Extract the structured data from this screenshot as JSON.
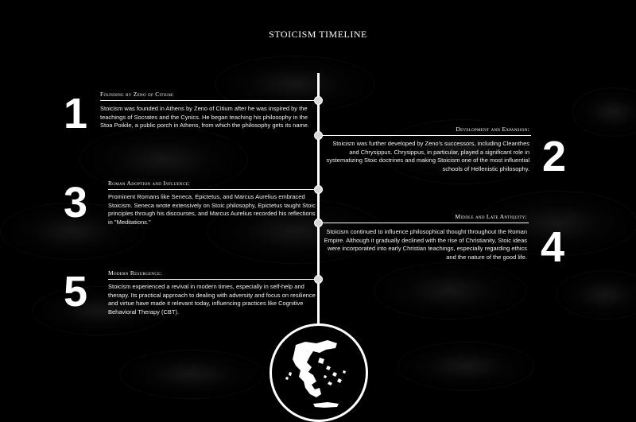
{
  "title": "STOICISM TIMELINE",
  "colors": {
    "background": "#000000",
    "foreground": "#ffffff",
    "node": "#d8d8d8"
  },
  "icons": {
    "badge": "greece-map-icon"
  },
  "events": [
    {
      "number": "1",
      "heading": "Founding by Zeno of Citium:",
      "text": "Stoicism was founded in Athens by Zeno of Citium after he was inspired by the teachings of Socrates and the Cynics. He began teaching his philosophy in the Stoa Poikile, a public porch in Athens, from which the philosophy gets its name.",
      "side": "left"
    },
    {
      "number": "2",
      "heading": "Development and Expansion:",
      "text": "Stoicism was further developed by Zeno's successors, including Cleanthes and Chrysippus. Chrysippus, in particular, played a significant role in systematizing Stoic doctrines and making Stoicism one of the most influential schools of Hellenistic philosophy.",
      "side": "right"
    },
    {
      "number": "3",
      "heading": "Roman Adoption and Influence:",
      "text": "Prominent Romans like Seneca, Epictetus, and Marcus Aurelius embraced Stoicism. Seneca wrote extensively on Stoic philosophy, Epictetus taught Stoic principles through his discourses, and Marcus Aurelius recorded his reflections in \"Meditations.\"",
      "side": "left"
    },
    {
      "number": "4",
      "heading": "Middle and Late Antiquity:",
      "text": "Stoicism continued to influence philosophical thought throughout the Roman Empire. Although it gradually declined with the rise of Christianity, Stoic ideas were incorporated into early Christian teachings, especially regarding ethics and the nature of the good life.",
      "side": "right"
    },
    {
      "number": "5",
      "heading": "Modern Resurgence:",
      "text": "Stoicism experienced a revival in modern times, especially in self-help and therapy. Its practical approach to dealing with adversity and focus on resilience and virtue have made it relevant today, influencing practices like Cognitive Behavioral Therapy (CBT).",
      "side": "left"
    }
  ]
}
